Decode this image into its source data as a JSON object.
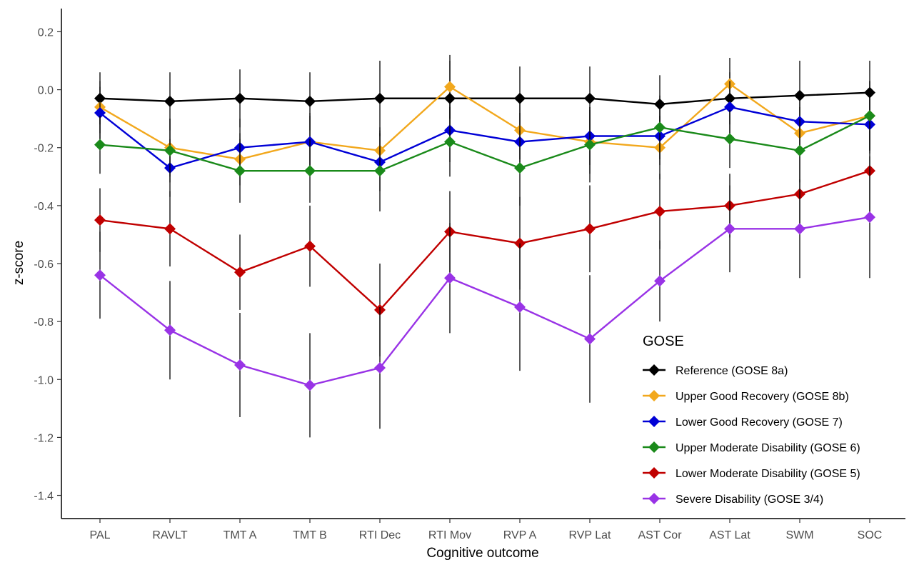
{
  "chart_data": {
    "type": "line",
    "title": "",
    "xlabel": "Cognitive outcome",
    "ylabel": "z-score",
    "ylim": [
      -1.48,
      0.28
    ],
    "yticks": [
      "0.2",
      "0.0",
      "-0.2",
      "-0.4",
      "-0.6",
      "-0.8",
      "-1.0",
      "-1.2",
      "-1.4"
    ],
    "grid": false,
    "legend": {
      "title": "GOSE",
      "position": "bottom-right"
    },
    "categories": [
      "PAL",
      "RAVLT",
      "TMT A",
      "TMT B",
      "RTI Dec",
      "RTI Mov",
      "RVP A",
      "RVP Lat",
      "AST Cor",
      "AST Lat",
      "SWM",
      "SOC"
    ],
    "series": [
      {
        "name": "Reference (GOSE 8a)",
        "color": "#000000",
        "values": [
          -0.03,
          -0.04,
          -0.03,
          -0.04,
          -0.03,
          -0.03,
          -0.03,
          -0.03,
          -0.05,
          -0.03,
          -0.02,
          -0.01
        ],
        "error": [
          0.09,
          0.1,
          0.1,
          0.1,
          0.13,
          0.13,
          0.11,
          0.11,
          0.1,
          0.09,
          0.12,
          0.11
        ]
      },
      {
        "name": "Upper Good Recovery (GOSE 8b)",
        "color": "#f2a81d",
        "values": [
          -0.06,
          -0.2,
          -0.24,
          -0.18,
          -0.21,
          0.01,
          -0.14,
          -0.18,
          -0.2,
          0.02,
          -0.15,
          -0.09
        ],
        "error": [
          0.09,
          0.1,
          0.09,
          0.09,
          0.08,
          0.11,
          0.1,
          0.11,
          0.11,
          0.09,
          0.09,
          0.12
        ]
      },
      {
        "name": "Lower Good Recovery (GOSE 7)",
        "color": "#0000d6",
        "values": [
          -0.08,
          -0.27,
          -0.2,
          -0.18,
          -0.25,
          -0.14,
          -0.18,
          -0.16,
          -0.16,
          -0.06,
          -0.11,
          -0.12
        ],
        "error": [
          0.09,
          0.1,
          0.1,
          0.1,
          0.1,
          0.11,
          0.1,
          0.1,
          0.1,
          0.09,
          0.1,
          0.1
        ]
      },
      {
        "name": "Upper Moderate Disability (GOSE 6)",
        "color": "#1a8a1a",
        "values": [
          -0.19,
          -0.21,
          -0.28,
          -0.28,
          -0.28,
          -0.18,
          -0.27,
          -0.19,
          -0.13,
          -0.17,
          -0.21,
          -0.09
        ],
        "error": [
          0.1,
          0.11,
          0.11,
          0.11,
          0.14,
          0.12,
          0.13,
          0.13,
          0.11,
          0.1,
          0.11,
          0.12
        ]
      },
      {
        "name": "Lower Moderate Disability (GOSE 5)",
        "color": "#c00000",
        "values": [
          -0.45,
          -0.48,
          -0.63,
          -0.54,
          -0.76,
          -0.49,
          -0.53,
          -0.48,
          -0.42,
          -0.4,
          -0.36,
          -0.28
        ],
        "error": [
          0.11,
          0.13,
          0.13,
          0.14,
          0.16,
          0.14,
          0.16,
          0.15,
          0.13,
          0.11,
          0.12,
          0.14
        ]
      },
      {
        "name": "Severe Disability (GOSE 3/4)",
        "color": "#9933e6",
        "values": [
          -0.64,
          -0.83,
          -0.95,
          -1.02,
          -0.96,
          -0.65,
          -0.75,
          -0.86,
          -0.66,
          -0.48,
          -0.48,
          -0.44
        ],
        "error": [
          0.15,
          0.17,
          0.18,
          0.18,
          0.21,
          0.19,
          0.22,
          0.22,
          0.14,
          0.15,
          0.17,
          0.21
        ]
      }
    ]
  }
}
